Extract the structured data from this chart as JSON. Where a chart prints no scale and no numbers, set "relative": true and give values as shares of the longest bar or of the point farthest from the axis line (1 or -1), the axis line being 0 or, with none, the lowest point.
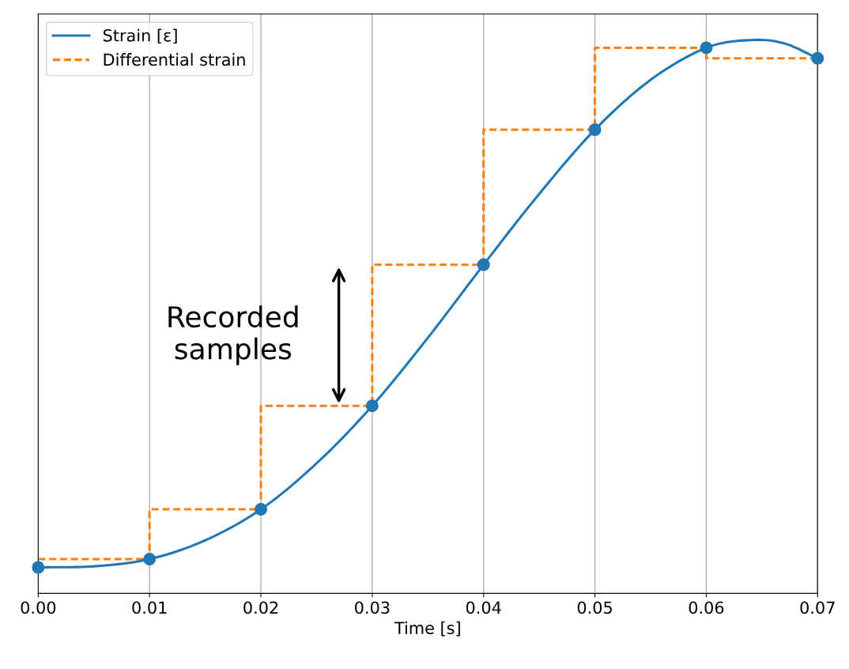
{
  "chart_data": {
    "type": "line",
    "relative": true,
    "xlabel": "Time [s]",
    "xlim": [
      0,
      0.07
    ],
    "xticks": [
      {
        "value": 0,
        "label": "0.00"
      },
      {
        "value": 0.01,
        "label": "0.01"
      },
      {
        "value": 0.02,
        "label": "0.02"
      },
      {
        "value": 0.03,
        "label": "0.03"
      },
      {
        "value": 0.04,
        "label": "0.04"
      },
      {
        "value": 0.05,
        "label": "0.05"
      },
      {
        "value": 0.06,
        "label": "0.06"
      },
      {
        "value": 0.07,
        "label": "0.07"
      }
    ],
    "grid": "x",
    "legend": "top left",
    "series": [
      {
        "name": "Strain [ε]",
        "color": "#1f77b4",
        "line_style": "solid",
        "x": [
          0,
          0.005,
          0.01,
          0.015,
          0.02,
          0.025,
          0.03,
          0.035,
          0.04,
          0.045,
          0.05,
          0.055,
          0.06,
          0.064,
          0.067,
          0.07
        ],
        "values": [
          0.047,
          0.049,
          0.062,
          0.096,
          0.152,
          0.235,
          0.339,
          0.462,
          0.594,
          0.722,
          0.838,
          0.928,
          0.986,
          1.0,
          0.994,
          0.967
        ]
      },
      {
        "name": "Differential strain",
        "type": "step",
        "color": "#ff7f0e",
        "line_style": "dashed",
        "x": [
          0,
          0.01,
          0.02,
          0.03,
          0.04,
          0.05,
          0.06,
          0.07
        ],
        "values": [
          0.062,
          0.152,
          0.339,
          0.594,
          0.838,
          0.986,
          0.967,
          0.967
        ]
      },
      {
        "type": "scatter",
        "color": "#1f77b4",
        "marker": "circle",
        "x": [
          0,
          0.01,
          0.02,
          0.03,
          0.04,
          0.05,
          0.06,
          0.07
        ],
        "values": [
          0.047,
          0.062,
          0.152,
          0.339,
          0.594,
          0.838,
          0.986,
          0.967
        ]
      }
    ],
    "annotations": [
      "Recorded\nsamples"
    ]
  }
}
